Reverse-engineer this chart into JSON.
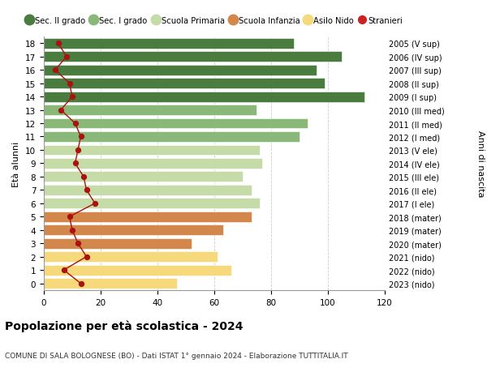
{
  "ages": [
    18,
    17,
    16,
    15,
    14,
    13,
    12,
    11,
    10,
    9,
    8,
    7,
    6,
    5,
    4,
    3,
    2,
    1,
    0
  ],
  "years": [
    "2005 (V sup)",
    "2006 (IV sup)",
    "2007 (III sup)",
    "2008 (II sup)",
    "2009 (I sup)",
    "2010 (III med)",
    "2011 (II med)",
    "2012 (I med)",
    "2013 (V ele)",
    "2014 (IV ele)",
    "2015 (III ele)",
    "2016 (II ele)",
    "2017 (I ele)",
    "2018 (mater)",
    "2019 (mater)",
    "2020 (mater)",
    "2021 (nido)",
    "2022 (nido)",
    "2023 (nido)"
  ],
  "bar_values": [
    88,
    105,
    96,
    99,
    113,
    75,
    93,
    90,
    76,
    77,
    70,
    73,
    76,
    73,
    63,
    52,
    61,
    66,
    47
  ],
  "stranieri": [
    5,
    8,
    4,
    9,
    10,
    6,
    11,
    13,
    12,
    11,
    14,
    15,
    18,
    9,
    10,
    12,
    15,
    7,
    13
  ],
  "bar_colors": [
    "#4a7c40",
    "#4a7c40",
    "#4a7c40",
    "#4a7c40",
    "#4a7c40",
    "#8ab878",
    "#8ab878",
    "#8ab878",
    "#c5dba8",
    "#c5dba8",
    "#c5dba8",
    "#c5dba8",
    "#c5dba8",
    "#d4874a",
    "#d4874a",
    "#d4874a",
    "#f5d97a",
    "#f5d97a",
    "#f5d97a"
  ],
  "legend_labels": [
    "Sec. II grado",
    "Sec. I grado",
    "Scuola Primaria",
    "Scuola Infanzia",
    "Asilo Nido",
    "Stranieri"
  ],
  "legend_colors": [
    "#4a7c40",
    "#8ab878",
    "#c5dba8",
    "#d4874a",
    "#f5d97a",
    "#cc2222"
  ],
  "stranieri_color": "#aa1111",
  "title": "Popolazione per età scolastica - 2024",
  "subtitle": "COMUNE DI SALA BOLOGNESE (BO) - Dati ISTAT 1° gennaio 2024 - Elaborazione TUTTITALIA.IT",
  "ylabel_left": "Età alunni",
  "ylabel_right": "Anni di nascita",
  "xlim": [
    0,
    120
  ],
  "xticks": [
    0,
    20,
    40,
    60,
    80,
    100,
    120
  ],
  "background_color": "#ffffff",
  "grid_color": "#cccccc"
}
